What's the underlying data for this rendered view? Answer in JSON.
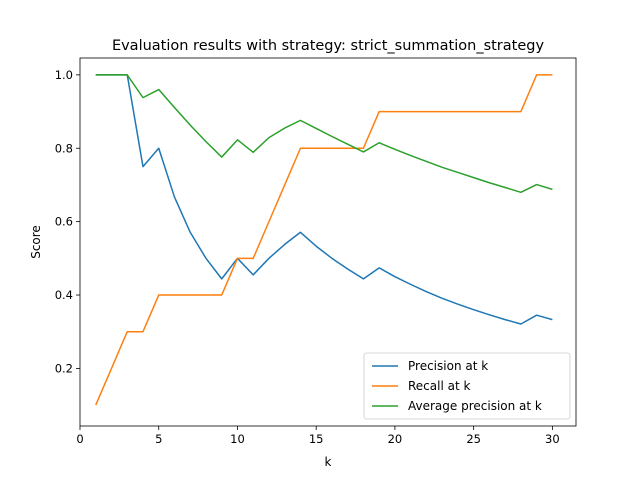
{
  "chart_data": {
    "type": "line",
    "title": "Evaluation results with strategy: strict_summation_strategy",
    "xlabel": "k",
    "ylabel": "Score",
    "xlim": [
      0.0,
      31.5
    ],
    "ylim": [
      0.043,
      1.046
    ],
    "xticks": [
      0,
      5,
      10,
      15,
      20,
      25,
      30
    ],
    "yticks": [
      0.2,
      0.4,
      0.6,
      0.8,
      1.0
    ],
    "xtick_labels": [
      "0",
      "5",
      "10",
      "15",
      "20",
      "25",
      "30"
    ],
    "ytick_labels": [
      "0.2",
      "0.4",
      "0.6",
      "0.8",
      "1.0"
    ],
    "grid": false,
    "legend_position": "lower-right",
    "x": [
      1,
      2,
      3,
      4,
      5,
      6,
      7,
      8,
      9,
      10,
      11,
      12,
      13,
      14,
      15,
      16,
      17,
      18,
      19,
      20,
      21,
      22,
      23,
      24,
      25,
      26,
      27,
      28,
      29,
      30
    ],
    "series": [
      {
        "name": "Precision at k",
        "color": "#1f77b4",
        "values": [
          1.0,
          1.0,
          1.0,
          0.75,
          0.8,
          0.667,
          0.571,
          0.5,
          0.444,
          0.5,
          0.455,
          0.5,
          0.538,
          0.571,
          0.533,
          0.5,
          0.471,
          0.444,
          0.474,
          0.45,
          0.429,
          0.409,
          0.391,
          0.375,
          0.36,
          0.346,
          0.333,
          0.321,
          0.345,
          0.333
        ]
      },
      {
        "name": "Recall at k",
        "color": "#ff7f0e",
        "values": [
          0.1,
          0.2,
          0.3,
          0.3,
          0.4,
          0.4,
          0.4,
          0.4,
          0.4,
          0.5,
          0.5,
          0.6,
          0.7,
          0.8,
          0.8,
          0.8,
          0.8,
          0.8,
          0.9,
          0.9,
          0.9,
          0.9,
          0.9,
          0.9,
          0.9,
          0.9,
          0.9,
          0.9,
          1.0,
          1.0
        ]
      },
      {
        "name": "Average precision at k",
        "color": "#2ca02c",
        "values": [
          1.0,
          1.0,
          1.0,
          0.938,
          0.96,
          0.911,
          0.863,
          0.818,
          0.776,
          0.823,
          0.789,
          0.829,
          0.855,
          0.876,
          0.854,
          0.832,
          0.811,
          0.79,
          0.815,
          0.797,
          0.78,
          0.764,
          0.748,
          0.734,
          0.72,
          0.706,
          0.693,
          0.68,
          0.701,
          0.688
        ]
      }
    ]
  }
}
